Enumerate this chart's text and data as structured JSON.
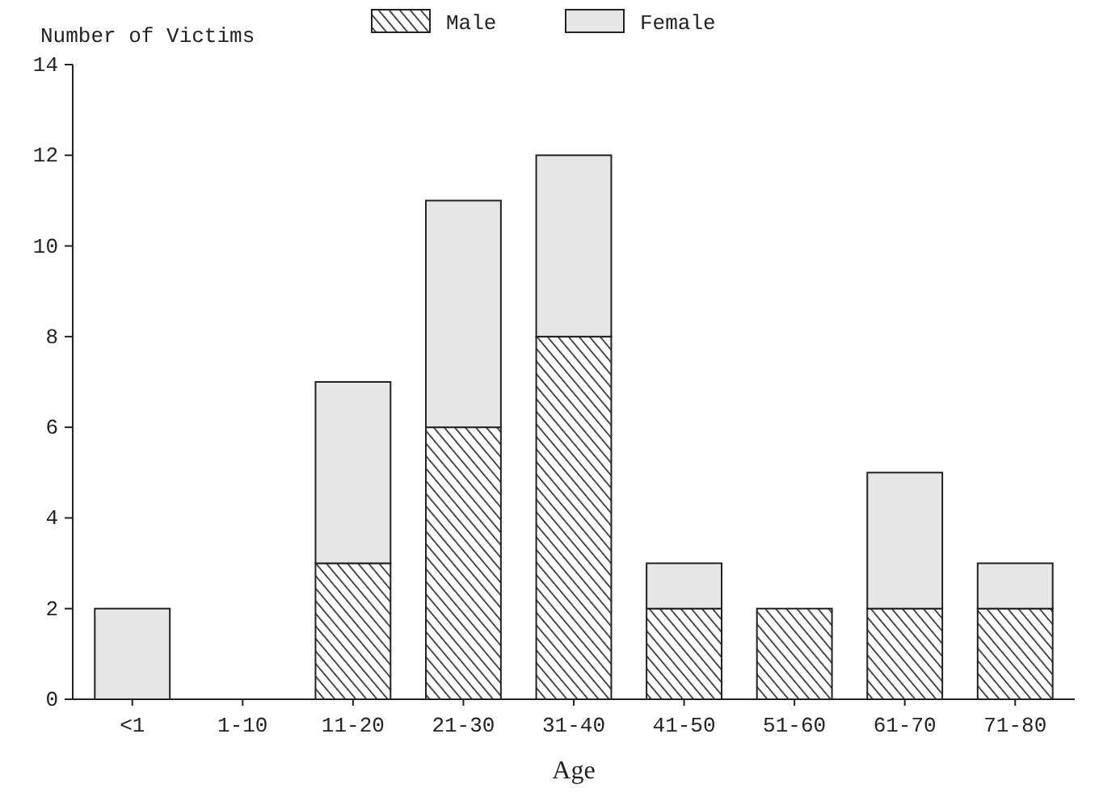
{
  "chart_data": {
    "type": "bar",
    "stacked": true,
    "xlabel": "Age",
    "ylabel": "Number of Victims",
    "categories": [
      "<1",
      "1-10",
      "11-20",
      "21-30",
      "31-40",
      "41-50",
      "51-60",
      "61-70",
      "71-80"
    ],
    "series": [
      {
        "name": "Male",
        "color": "#222222",
        "values": [
          0,
          0,
          3,
          6,
          8,
          2,
          2,
          2,
          2
        ]
      },
      {
        "name": "Female",
        "color": "#e6e6e6",
        "values": [
          2,
          0,
          4,
          5,
          4,
          1,
          0,
          3,
          1
        ]
      }
    ],
    "ylim": [
      0,
      14
    ],
    "yticks": [
      0,
      2,
      4,
      6,
      8,
      10,
      12,
      14
    ],
    "grid": false,
    "legend": "top"
  }
}
